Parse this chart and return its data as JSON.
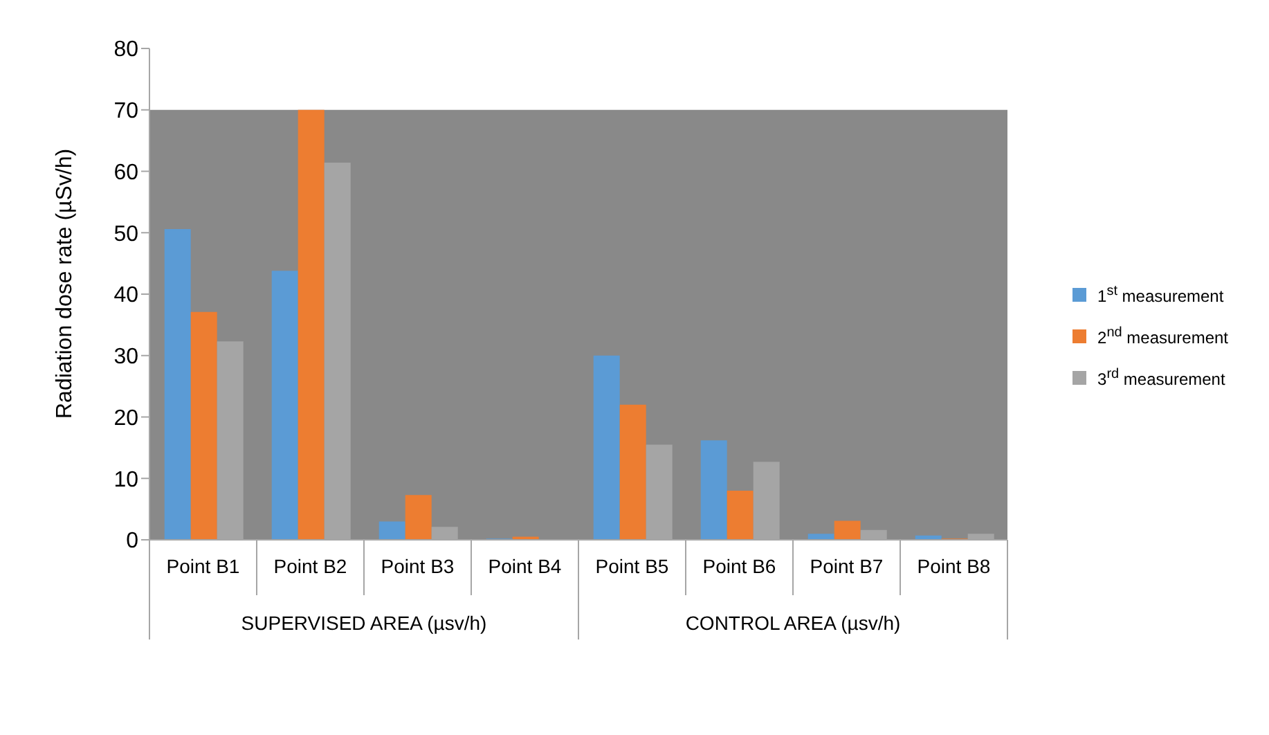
{
  "chart_data": {
    "type": "bar",
    "ylabel": "Radiation dose rate (µSv/h)",
    "categories": [
      "Point B1",
      "Point B2",
      "Point B3",
      "Point B4",
      "Point B5",
      "Point B6",
      "Point B7",
      "Point B8"
    ],
    "series": [
      {
        "name": "1$^{st}$ measurement",
        "color": "#5b9bd5",
        "values": [
          50.6,
          43.8,
          3.0,
          0.2,
          30.0,
          16.2,
          1.0,
          0.7
        ]
      },
      {
        "name": "2$^{nd}$ measurement",
        "color": "#ed7d31",
        "values": [
          37.1,
          70.0,
          7.3,
          0.5,
          22.0,
          8.0,
          3.1,
          0.2
        ]
      },
      {
        "name": "3$^{rd}$ measurement",
        "color": "#a5a5a5",
        "values": [
          32.3,
          61.4,
          2.1,
          0.0,
          15.5,
          12.7,
          1.6,
          1.0
        ]
      }
    ],
    "ylim": [
      0,
      80
    ],
    "yticks": [
      0,
      10,
      20,
      30,
      40,
      50,
      60,
      70,
      80
    ],
    "bands": [
      {
        "axis": "y",
        "from": 0,
        "to": 70,
        "color": "#898989"
      }
    ],
    "annotations": [
      "SUPERVISED AREA (µsv/h)",
      "CONTROL AREA (µsv/h)"
    ],
    "grid": false,
    "legend": "right"
  }
}
